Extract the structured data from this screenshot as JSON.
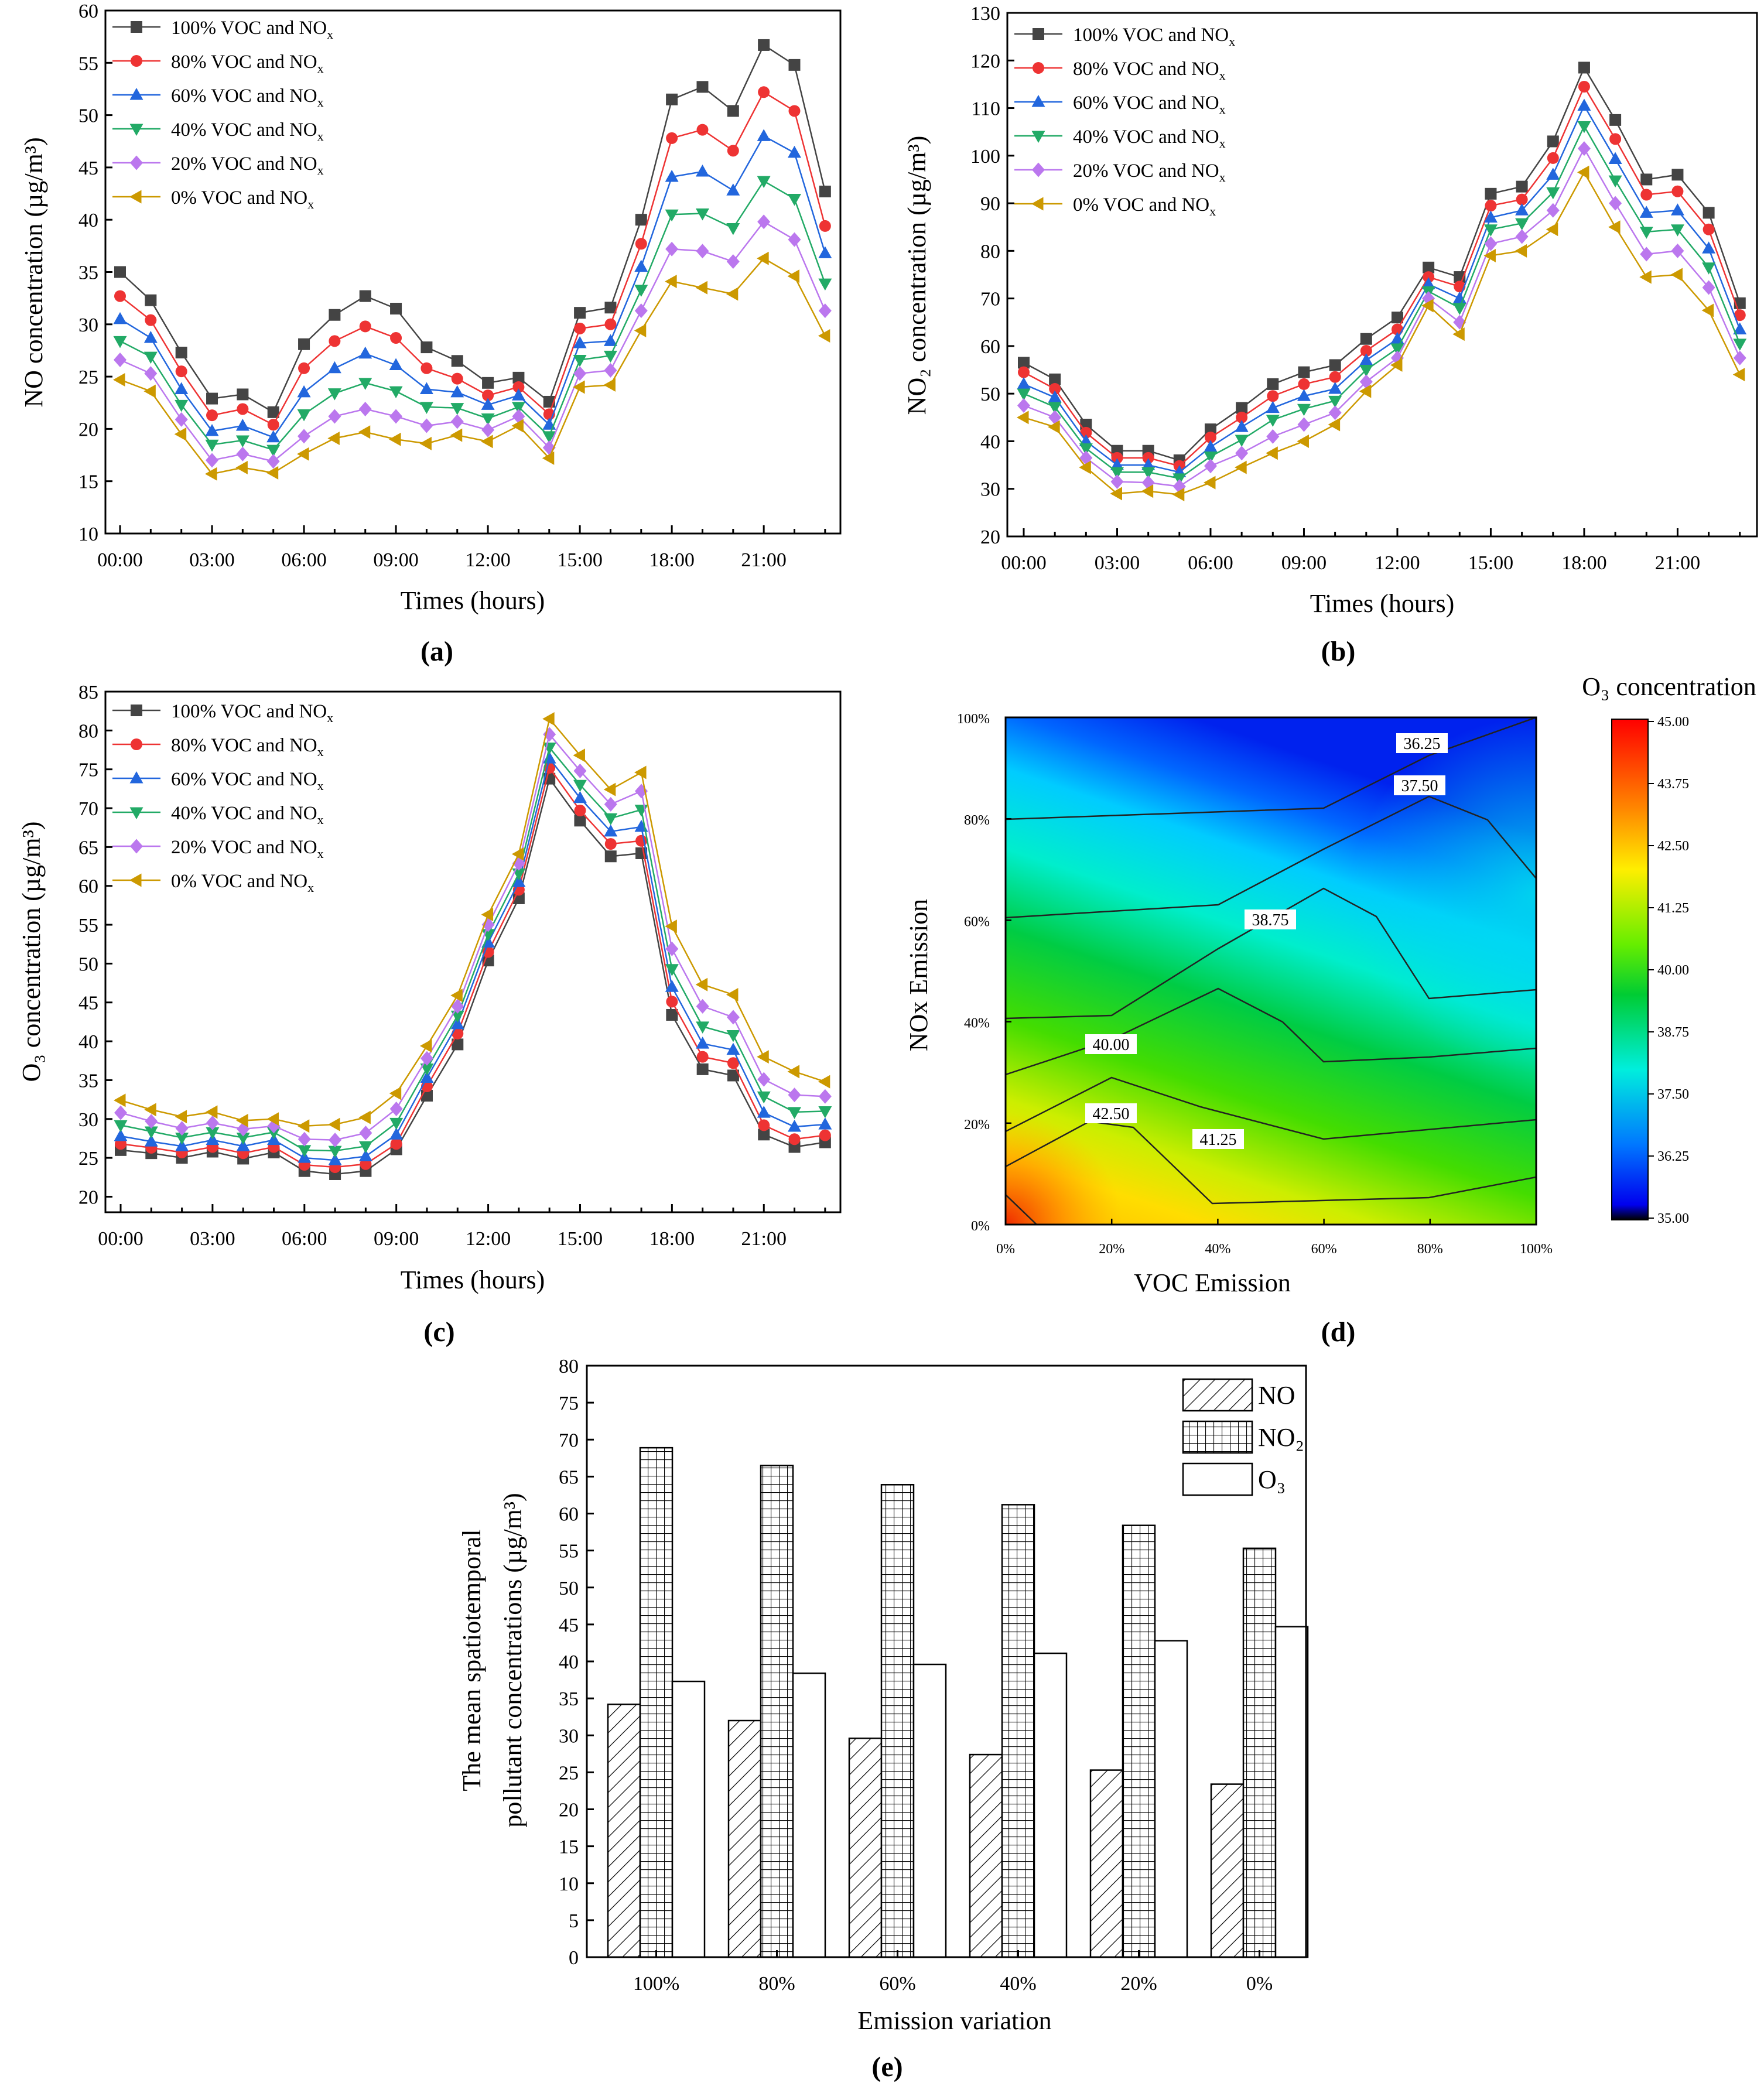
{
  "time_ticks": [
    "00:00",
    "03:00",
    "06:00",
    "09:00",
    "12:00",
    "15:00",
    "18:00",
    "21:00"
  ],
  "legend_series": [
    "100% VOC and NOx",
    "80% VOC and NOx",
    "60% VOC and NOx",
    "40% VOC and NOx",
    "20% VOC and NOx",
    "0% VOC and NOx"
  ],
  "series_colors": [
    "#444444",
    "#ee3333",
    "#2266dd",
    "#22aa66",
    "#bb77ee",
    "#cc9900"
  ],
  "chart_data": [
    {
      "type": "line",
      "panel_label": "(a)",
      "xlabel": "Times (hours)",
      "ylabel": "NO concentration (µg/m³)",
      "ylim": [
        10,
        60
      ],
      "yticks": [
        10,
        15,
        20,
        25,
        30,
        35,
        40,
        45,
        50,
        55,
        60
      ],
      "x": [
        0,
        1,
        2,
        3,
        4,
        5,
        6,
        7,
        8,
        9,
        10,
        11,
        12,
        13,
        14,
        15,
        16,
        17,
        18,
        19,
        20,
        21,
        22,
        23
      ],
      "series": [
        {
          "name": "100% VOC and NOx",
          "values": [
            35,
            32.3,
            27.3,
            22.9,
            23.3,
            21.6,
            28.1,
            30.9,
            32.7,
            31.5,
            27.8,
            26.5,
            24.4,
            24.9,
            22.6,
            31.1,
            31.6,
            40,
            51.5,
            52.7,
            50.4,
            56.7,
            54.8,
            42.7
          ]
        },
        {
          "name": "80% VOC and NOx",
          "values": [
            32.7,
            30.4,
            25.5,
            21.3,
            21.9,
            20.4,
            25.8,
            28.4,
            29.8,
            28.7,
            25.8,
            24.8,
            23.2,
            24,
            21.4,
            29.6,
            30,
            37.7,
            47.8,
            48.6,
            46.6,
            52.2,
            50.4,
            39.4
          ]
        },
        {
          "name": "60% VOC and NOx",
          "values": [
            30.5,
            28.7,
            23.8,
            19.8,
            20.3,
            19.2,
            23.5,
            25.8,
            27.2,
            26.1,
            23.8,
            23.5,
            22.3,
            23.2,
            20.4,
            28.2,
            28.4,
            35.5,
            44.1,
            44.6,
            42.8,
            48,
            46.4,
            36.8
          ]
        },
        {
          "name": "40% VOC and NOx",
          "values": [
            28.4,
            26.9,
            22.3,
            18.5,
            18.9,
            18,
            21.4,
            23.4,
            24.4,
            23.6,
            22.1,
            22,
            21,
            22.1,
            19.3,
            26.6,
            27,
            33.3,
            40.5,
            40.6,
            39.2,
            43.7,
            42,
            33.9
          ]
        },
        {
          "name": "20% VOC and NOx",
          "values": [
            26.6,
            25.3,
            20.9,
            17,
            17.6,
            16.9,
            19.3,
            21.2,
            21.9,
            21.2,
            20.3,
            20.7,
            19.9,
            21.2,
            18.2,
            25.3,
            25.6,
            31.3,
            37.2,
            37,
            36,
            39.8,
            38.1,
            31.3
          ]
        },
        {
          "name": "0% VOC and NOx",
          "values": [
            24.7,
            23.6,
            19.5,
            15.7,
            16.3,
            15.8,
            17.6,
            19.1,
            19.7,
            19,
            18.6,
            19.4,
            18.8,
            20.3,
            17.2,
            24,
            24.2,
            29.4,
            34.1,
            33.5,
            32.9,
            36.3,
            34.6,
            28.9
          ]
        }
      ]
    },
    {
      "type": "line",
      "panel_label": "(b)",
      "xlabel": "Times (hours)",
      "ylabel": "NO₂ concentration (µg/m³)",
      "ylim": [
        20,
        130
      ],
      "yticks": [
        20,
        30,
        40,
        50,
        60,
        70,
        80,
        90,
        100,
        110,
        120,
        130
      ],
      "x": [
        0,
        1,
        2,
        3,
        4,
        5,
        6,
        7,
        8,
        9,
        10,
        11,
        12,
        13,
        14,
        15,
        16,
        17,
        18,
        19,
        20,
        21,
        22,
        23
      ],
      "series": [
        {
          "name": "100% VOC and NOx",
          "values": [
            56.5,
            53,
            43.5,
            38,
            38,
            36,
            42.5,
            47,
            52,
            54.5,
            56,
            61.5,
            66,
            76.5,
            74.5,
            92,
            93.5,
            103,
            118.5,
            107.5,
            95,
            96,
            88,
            69
          ]
        },
        {
          "name": "80% VOC and NOx",
          "values": [
            54.5,
            51,
            41.8,
            36.5,
            36.5,
            34.8,
            40.8,
            45,
            49.5,
            52,
            53.5,
            59,
            63.5,
            74.5,
            72.5,
            89.5,
            90.8,
            99.5,
            114.5,
            103.5,
            91.8,
            92.5,
            84.5,
            66.5
          ]
        },
        {
          "name": "60% VOC and NOx",
          "values": [
            52,
            49.2,
            40,
            35,
            35,
            33.5,
            38.8,
            43,
            47,
            49.5,
            51,
            57,
            61.5,
            73,
            70,
            87,
            88.5,
            96,
            110.5,
            99.3,
            88,
            88.5,
            80.5,
            63.5
          ]
        },
        {
          "name": "40% VOC and NOx",
          "values": [
            50,
            47.2,
            38.5,
            33.5,
            33.5,
            32.2,
            36.8,
            40.3,
            44.5,
            46.8,
            48.5,
            55,
            59.5,
            71.5,
            68,
            84.5,
            85.8,
            92.3,
            106.2,
            94.8,
            84,
            84.5,
            76.5,
            60.5
          ]
        },
        {
          "name": "20% VOC and NOx",
          "values": [
            47.5,
            45,
            36.5,
            31.5,
            31.3,
            30.5,
            34.8,
            37.5,
            41,
            43.5,
            46,
            52.5,
            57.5,
            70,
            65,
            81.5,
            83,
            88.5,
            101.5,
            90,
            79.3,
            80,
            72.3,
            57.5
          ]
        },
        {
          "name": "0% VOC and NOx",
          "values": [
            45,
            43,
            34.5,
            29,
            29.5,
            28.8,
            31.3,
            34.5,
            37.5,
            40,
            43.5,
            50.5,
            56,
            68.5,
            62.5,
            79,
            80,
            84.5,
            96.5,
            85,
            74.5,
            75,
            67.5,
            54
          ]
        }
      ]
    },
    {
      "type": "line",
      "panel_label": "(c)",
      "xlabel": "Times (hours)",
      "ylabel": "O₃ concentration (µg/m³)",
      "ylim": [
        18,
        85
      ],
      "yticks": [
        20,
        25,
        30,
        35,
        40,
        45,
        50,
        55,
        60,
        65,
        70,
        75,
        80,
        85
      ],
      "x": [
        0,
        1,
        2,
        3,
        4,
        5,
        6,
        7,
        8,
        9,
        10,
        11,
        12,
        13,
        14,
        15,
        16,
        17,
        18,
        19,
        20,
        21,
        22,
        23
      ],
      "series": [
        {
          "name": "100% VOC and NOx",
          "values": [
            26,
            25.6,
            25,
            25.8,
            24.9,
            25.7,
            23.3,
            22.9,
            23.3,
            26.1,
            33,
            39.6,
            50.4,
            58.4,
            73.8,
            68.4,
            63.8,
            64.2,
            43.4,
            36.4,
            35.6,
            28,
            26.4,
            27
          ]
        },
        {
          "name": "80% VOC and NOx",
          "values": [
            26.8,
            26.3,
            25.7,
            26.4,
            25.6,
            26.4,
            24.1,
            23.8,
            24.2,
            26.8,
            34.2,
            41,
            51.5,
            59.5,
            75.2,
            69.7,
            65.4,
            65.8,
            45.1,
            38,
            37.2,
            29.2,
            27.4,
            27.9
          ]
        },
        {
          "name": "60% VOC and NOx",
          "values": [
            27.8,
            27.1,
            26.5,
            27.3,
            26.5,
            27.3,
            25,
            24.7,
            25.2,
            28,
            35.3,
            42.2,
            52.7,
            60.5,
            76.4,
            71.3,
            67,
            67.6,
            47,
            39.7,
            38.9,
            30.8,
            29,
            29.3
          ]
        },
        {
          "name": "40% VOC and NOx",
          "values": [
            29.2,
            28.4,
            27.6,
            28.3,
            27.6,
            28.3,
            26,
            25.9,
            26.5,
            29.5,
            36.5,
            43.3,
            53.8,
            61.6,
            77.8,
            73,
            68.7,
            69.8,
            49.3,
            41.9,
            40.8,
            32.9,
            30.9,
            31
          ]
        },
        {
          "name": "20% VOC and NOx",
          "values": [
            30.8,
            29.7,
            28.8,
            29.5,
            28.7,
            29.1,
            27.4,
            27.3,
            28.2,
            31.3,
            37.8,
            44.5,
            55,
            62.9,
            79.5,
            74.8,
            70.5,
            72.2,
            51.9,
            44.5,
            43.1,
            35.1,
            33.1,
            32.9
          ]
        },
        {
          "name": "0% VOC and NOx",
          "values": [
            32.4,
            31.2,
            30.3,
            30.9,
            29.8,
            30,
            29.1,
            29.3,
            30.2,
            33.3,
            39.4,
            45.9,
            56.3,
            64.1,
            81.5,
            76.8,
            72.4,
            74.6,
            54.8,
            47.3,
            46,
            38,
            36.1,
            34.8
          ]
        }
      ]
    },
    {
      "type": "heatmap",
      "panel_label": "(d)",
      "xlabel": "VOC Emission",
      "ylabel": "NOx Emission",
      "xticks": [
        "0%",
        "20%",
        "40%",
        "60%",
        "80%",
        "100%"
      ],
      "yticks": [
        "0%",
        "20%",
        "40%",
        "60%",
        "80%",
        "100%"
      ],
      "colorbar_title": "O₃ concentration",
      "colorbar_ticks": [
        "45.00",
        "43.75",
        "42.50",
        "41.25",
        "40.00",
        "38.75",
        "37.50",
        "36.25",
        "35.00"
      ],
      "colorbar_range": [
        35,
        45
      ],
      "contour_labels": [
        "36.25",
        "37.50",
        "38.75",
        "40.00",
        "41.25",
        "42.50"
      ]
    },
    {
      "type": "bar",
      "panel_label": "(e)",
      "xlabel": "Emission variation",
      "ylabel_lines": [
        "The mean spatiotemporal",
        "pollutant concentrations (µg/m³)"
      ],
      "ylim": [
        0,
        80
      ],
      "yticks": [
        0,
        5,
        10,
        15,
        20,
        25,
        30,
        35,
        40,
        45,
        50,
        55,
        60,
        65,
        70,
        75,
        80
      ],
      "categories": [
        "100%",
        "80%",
        "60%",
        "40%",
        "20%",
        "0%"
      ],
      "series": [
        {
          "name": "NO",
          "values": [
            34.2,
            32,
            29.6,
            27.4,
            25.3,
            23.4
          ]
        },
        {
          "name": "NO₂",
          "values": [
            68.9,
            66.5,
            63.9,
            61.2,
            58.4,
            55.3
          ]
        },
        {
          "name": "O₃",
          "values": [
            37.3,
            38.4,
            39.6,
            41.1,
            42.8,
            44.7
          ]
        }
      ]
    }
  ]
}
